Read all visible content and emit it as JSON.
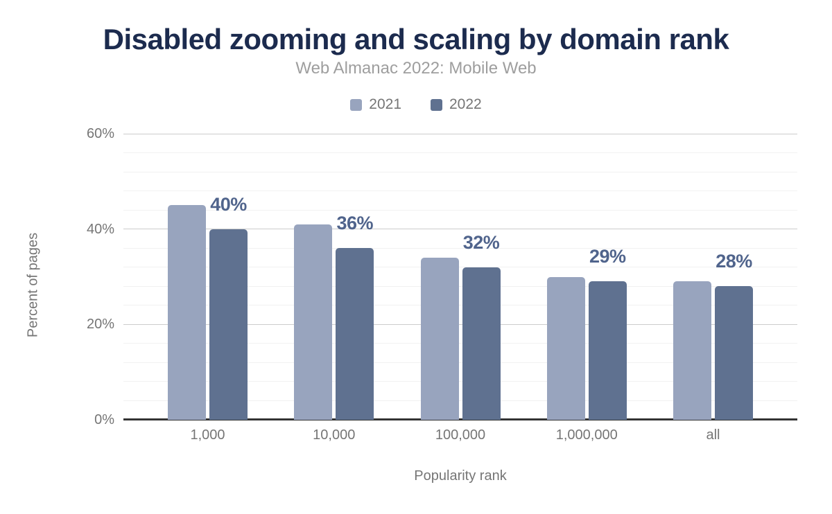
{
  "header": {
    "title": "Disabled zooming and scaling by domain rank",
    "subtitle": "Web Almanac 2022: Mobile Web"
  },
  "legend": {
    "items": [
      {
        "label": "2021",
        "color": "#98A4BE"
      },
      {
        "label": "2022",
        "color": "#5F7190"
      }
    ]
  },
  "chart_data": {
    "type": "bar",
    "title": "Disabled zooming and scaling by domain rank",
    "subtitle": "Web Almanac 2022: Mobile Web",
    "categories": [
      "1,000",
      "10,000",
      "100,000",
      "1,000,000",
      "all"
    ],
    "series": [
      {
        "name": "2021",
        "color": "#98A4BE",
        "values": [
          45,
          41,
          34,
          30,
          29
        ]
      },
      {
        "name": "2022",
        "color": "#5F7190",
        "values": [
          40,
          36,
          32,
          29,
          28
        ]
      }
    ],
    "data_labels": [
      "40%",
      "36%",
      "32%",
      "29%",
      "28%"
    ],
    "data_labels_on_series": "2022",
    "xlabel": "Popularity rank",
    "ylabel": "Percent of pages",
    "ylim": [
      0,
      60
    ],
    "yticks": [
      0,
      20,
      40,
      60
    ],
    "ytick_labels": [
      "0%",
      "20%",
      "40%",
      "60%"
    ],
    "minor_gridline_step": 4,
    "grid": true,
    "legend_position": "top",
    "colors": {
      "title": "#1C2B4E",
      "subtitle": "#9E9E9E",
      "axis_text": "#757575",
      "data_label": "#50648C",
      "major_gridline": "#cccccc",
      "minor_gridline": "#f1f1f1",
      "axis_line": "#333333"
    }
  }
}
